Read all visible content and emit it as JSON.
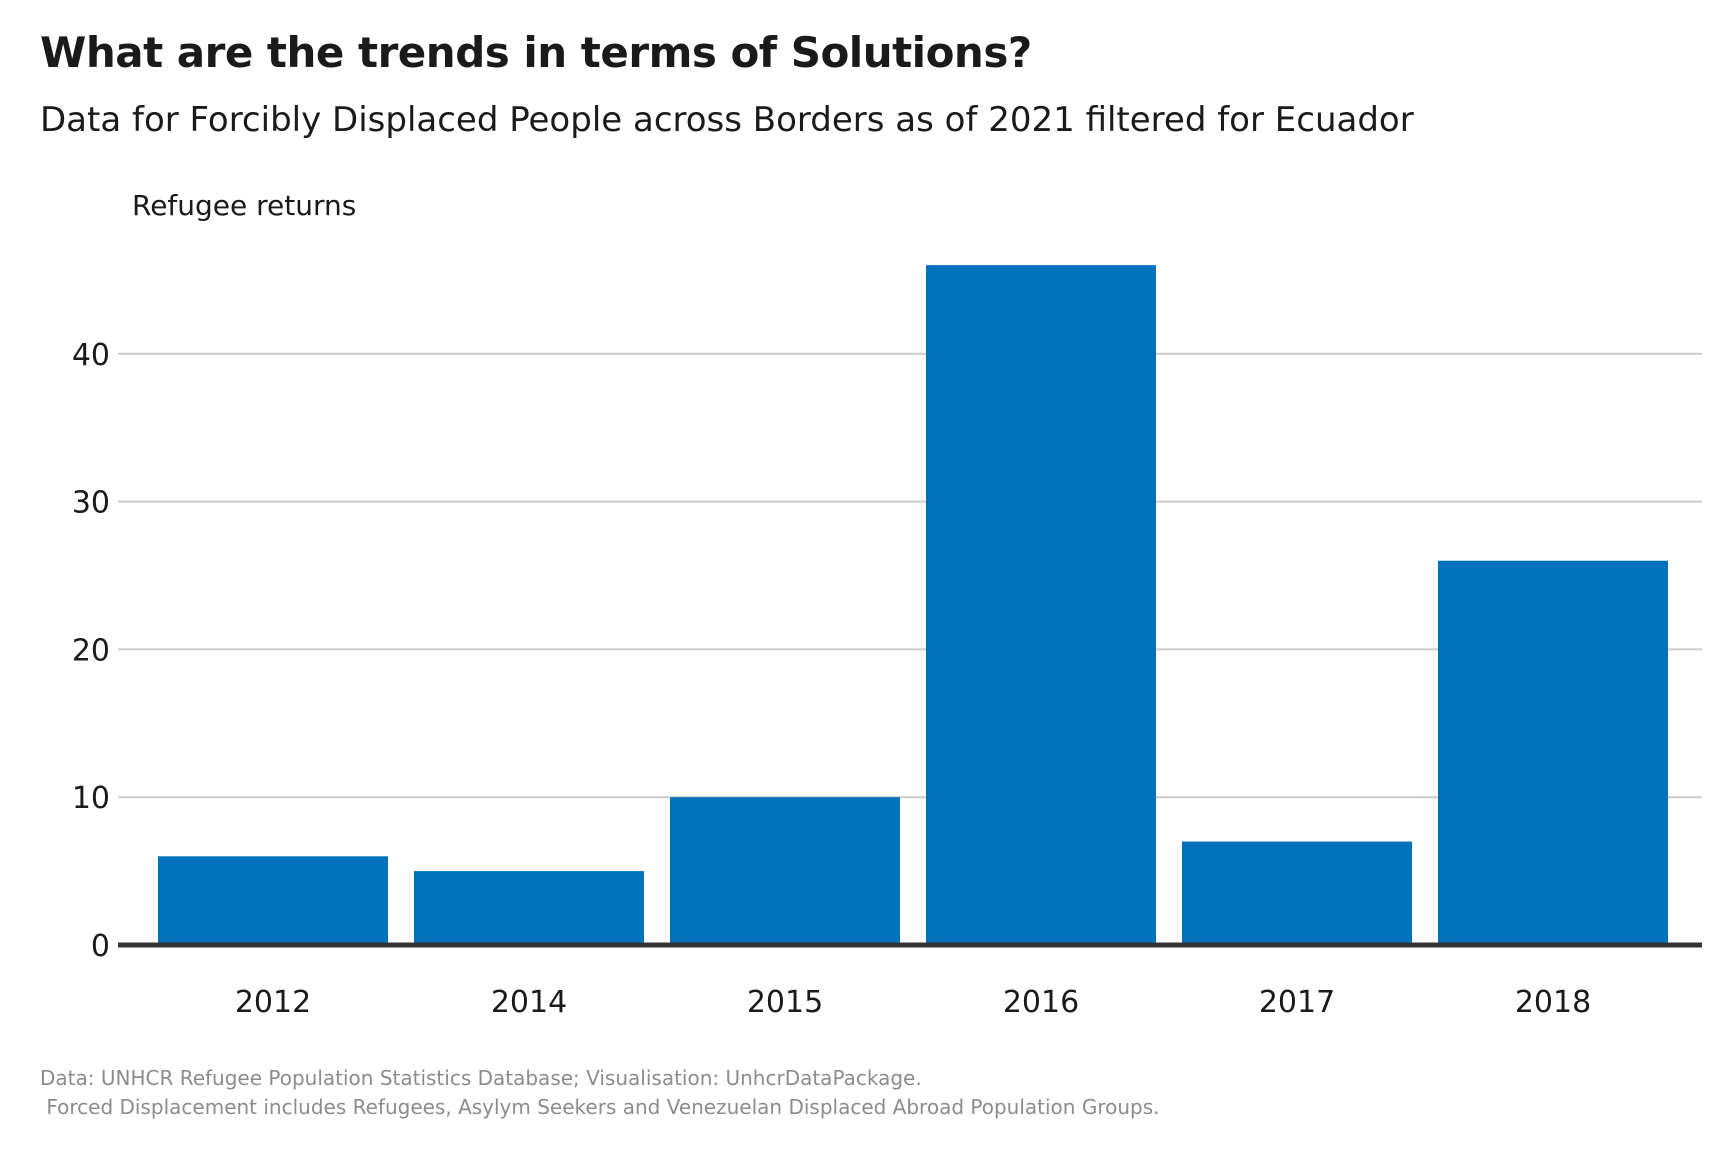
{
  "title": "What are the trends in terms of Solutions?",
  "subtitle": "Data for Forcibly Displaced People across Borders as of 2021 filtered for Ecuador",
  "caption": {
    "line1": "Data: UNHCR Refugee Population Statistics Database; Visualisation: UnhcrDataPackage.",
    "line2": " Forced Displacement includes Refugees, Asylym Seekers and Venezuelan Displaced Abroad Population Groups."
  },
  "colors": {
    "bar": "#0072BC",
    "grid": "#cccccc",
    "baseline": "#333333",
    "text": "#1a1a1a",
    "caption": "#8c8c8c"
  },
  "chart_data": {
    "type": "bar",
    "categories": [
      "2012",
      "2014",
      "2015",
      "2016",
      "2017",
      "2018"
    ],
    "values": [
      6,
      5,
      10,
      46,
      7,
      26
    ],
    "title": "",
    "xlabel": "",
    "ylabel": "Refugee returns",
    "ylim": [
      0,
      48
    ],
    "yticks": [
      0,
      10,
      20,
      30,
      40
    ],
    "grid": true,
    "legend": "none"
  }
}
